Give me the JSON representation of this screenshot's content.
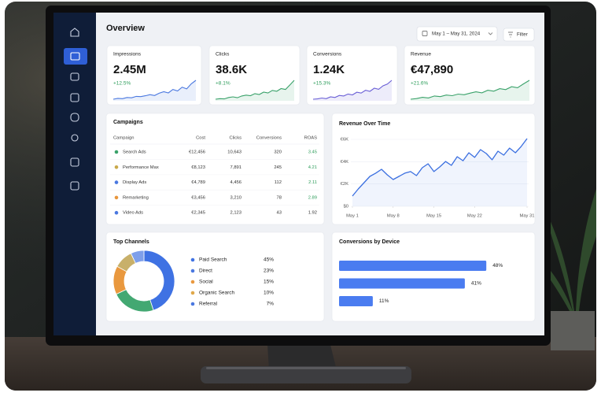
{
  "header": {
    "title": "Overview",
    "date_range": "May 1 – May 31, 2024",
    "filter": "Filter"
  },
  "kpis": [
    {
      "label": "Impressions",
      "value": "2.45M",
      "delta": "+12.5%",
      "color": "#4a78e0",
      "trend": [
        2,
        2.3,
        2.2,
        2.6,
        2.5,
        3,
        2.9,
        3.2,
        3.6,
        3.3,
        4.1,
        4.6,
        4.2,
        5.4,
        4.9,
        6.2,
        5.6,
        7.4,
        8.6
      ]
    },
    {
      "label": "Clicks",
      "value": "38.6K",
      "delta": "+8.1%",
      "color": "#3aa26a",
      "trend": [
        2,
        2.2,
        2.1,
        2.6,
        2.8,
        2.5,
        3.1,
        3.4,
        3.2,
        3.9,
        3.6,
        4.4,
        4.1,
        5,
        4.7,
        5.6,
        5.3,
        6.8,
        8.4
      ]
    },
    {
      "label": "Conversions",
      "value": "1.24K",
      "delta": "+15.3%",
      "color": "#6a5fd6",
      "trend": [
        2,
        2.1,
        2.4,
        2.2,
        2.8,
        2.6,
        3.3,
        3.1,
        3.8,
        3.5,
        4.4,
        4.1,
        5.1,
        4.7,
        5.8,
        5.4,
        6.6,
        7.2,
        8.5
      ]
    },
    {
      "label": "Revenue",
      "value": "€47,890",
      "delta": "+21.6%",
      "color": "#3aa26a",
      "trend": [
        2,
        2.2,
        2.6,
        2.4,
        3,
        2.8,
        3.3,
        3.1,
        3.6,
        3.4,
        3.9,
        4.3,
        4,
        4.8,
        4.5,
        5.3,
        5,
        5.9,
        5.6,
        6.8,
        7.9
      ]
    }
  ],
  "campaigns": {
    "title": "Campaigns",
    "columns": [
      "Campaign",
      "Cost",
      "Clicks",
      "Conversions",
      "ROAS"
    ],
    "rows": [
      [
        "Search Ads",
        "€12,456",
        "10,643",
        "320",
        "3.45"
      ],
      [
        "Performance Max",
        "€8,123",
        "7,891",
        "245",
        "4.21"
      ],
      [
        "Display Ads",
        "€4,789",
        "4,456",
        "112",
        "2.11"
      ],
      [
        "Remarketing",
        "€3,456",
        "3,210",
        "78",
        "2.89"
      ],
      [
        "Video Ads",
        "€2,345",
        "2,123",
        "43",
        "1.92"
      ]
    ],
    "row_colors": [
      "#3aa26a",
      "#c9a94a",
      "#4a78e0",
      "#e8963c",
      "#4a78e0"
    ],
    "roas_colors": [
      "#2e9d5b",
      "#2e9d5b",
      "#2e9d5b",
      "#2e9d5b",
      "#333333"
    ]
  },
  "chart_data": [
    {
      "type": "line",
      "title": "Revenue Over Time",
      "color": "#3b6fe0",
      "x": [
        1,
        2,
        3,
        4,
        5,
        6,
        7,
        8,
        9,
        10,
        11,
        12,
        13,
        14,
        15,
        16,
        17,
        18,
        19,
        20,
        21,
        22,
        23,
        24,
        25,
        26,
        27,
        28,
        29,
        30,
        31
      ],
      "values": [
        920,
        1550,
        2120,
        2680,
        2970,
        3320,
        2820,
        2400,
        2680,
        2970,
        3110,
        2750,
        3460,
        3810,
        3110,
        3530,
        4020,
        3670,
        4450,
        4090,
        4800,
        4380,
        5080,
        4730,
        4170,
        4940,
        4590,
        5220,
        4800,
        5370,
        6070
      ],
      "xlim": [
        1,
        31
      ],
      "xticks": [
        {
          "value": 1,
          "label": "May 1"
        },
        {
          "value": 8,
          "label": "May 8"
        },
        {
          "value": 15,
          "label": "May 15"
        },
        {
          "value": 22,
          "label": "May 22"
        },
        {
          "value": 31,
          "label": "May 31"
        }
      ],
      "ylim": [
        0,
        6000
      ],
      "yticks": [
        {
          "value": 0,
          "label": "$0"
        },
        {
          "value": 2000,
          "label": "€2K"
        },
        {
          "value": 4000,
          "label": "€4K"
        },
        {
          "value": 6000,
          "label": "€6K"
        }
      ],
      "grid": true
    },
    {
      "type": "pie",
      "title": "Top Channels",
      "categories": [
        "Paid Search",
        "Direct",
        "Social",
        "Organic Search",
        "Referral"
      ],
      "values": [
        45,
        23,
        15,
        10,
        7
      ],
      "value_labels": [
        "45%",
        "23%",
        "15%",
        "10%",
        "7%"
      ],
      "colors": [
        "#3f72e3",
        "#43a872",
        "#e9983e",
        "#c8b06a",
        "#7e9fea"
      ],
      "legend_dot_colors": [
        "#3f72e3",
        "#4a78e0",
        "#e9983e",
        "#e0a84a",
        "#4a78e0"
      ]
    },
    {
      "type": "bar",
      "title": "Conversions by Device",
      "orientation": "horizontal",
      "values": [
        48,
        41,
        11
      ],
      "value_labels": [
        "48%",
        "41%",
        "11%"
      ],
      "color": "#4a7cf0",
      "xlim": [
        0,
        50
      ]
    }
  ]
}
